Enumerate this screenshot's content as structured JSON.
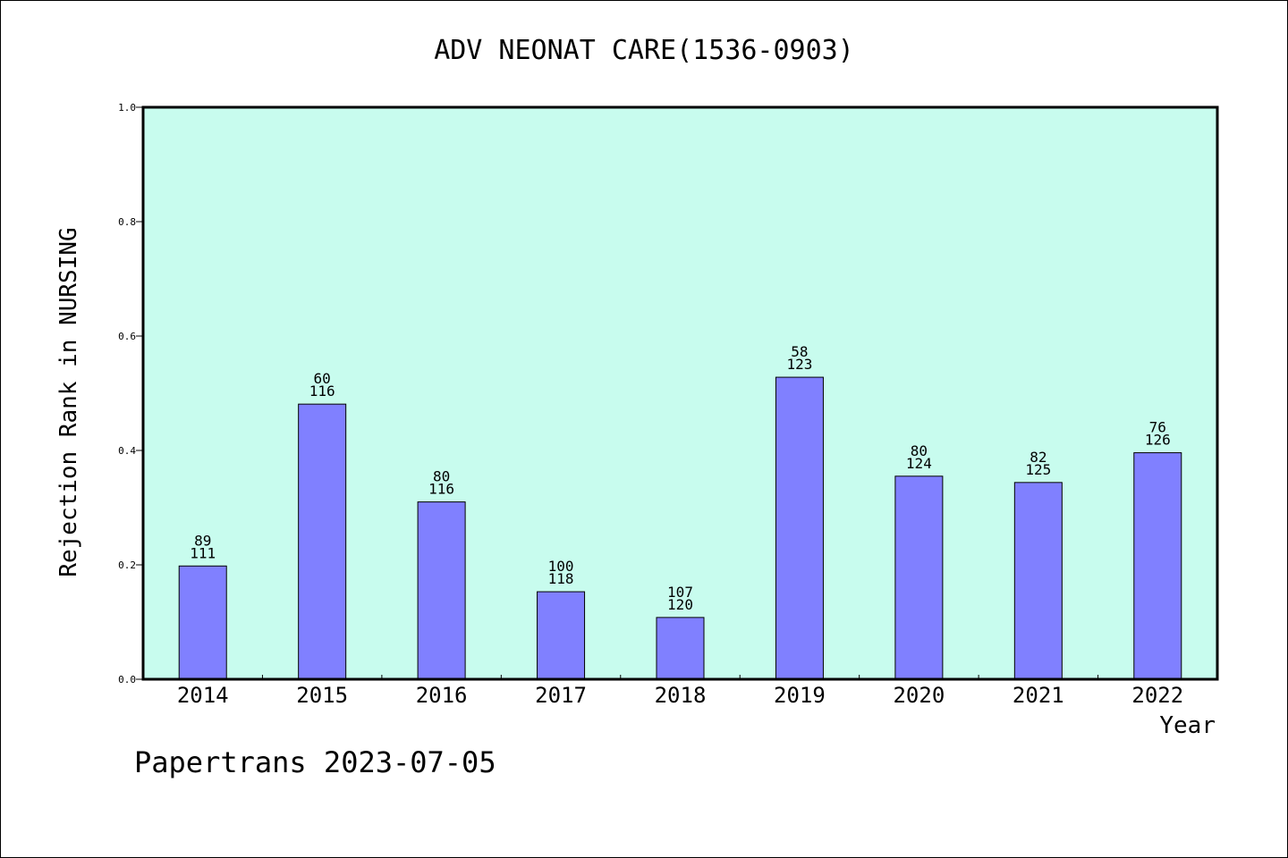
{
  "chart_data": {
    "type": "bar",
    "title": "ADV NEONAT CARE(1536-0903)",
    "xlabel": "Year",
    "ylabel": "Rejection Rank in NURSING",
    "ylim": [
      0,
      1.0
    ],
    "yticks": [
      "0.0",
      "0.2",
      "0.4",
      "0.6",
      "0.8",
      "1.0"
    ],
    "categories": [
      "2014",
      "2015",
      "2016",
      "2017",
      "2018",
      "2019",
      "2020",
      "2021",
      "2022"
    ],
    "values": [
      0.198,
      0.481,
      0.31,
      0.153,
      0.108,
      0.528,
      0.355,
      0.344,
      0.396
    ],
    "rank_labels": [
      "89",
      "60",
      "80",
      "100",
      "107",
      "58",
      "80",
      "82",
      "76"
    ],
    "total_labels": [
      "111",
      "116",
      "116",
      "118",
      "120",
      "123",
      "124",
      "125",
      "126"
    ],
    "grid": false,
    "colors": {
      "plot_background": "#c8fcee",
      "bar_fill": "#8080ff",
      "bar_stroke": "#000000"
    }
  },
  "footer": {
    "credit": "Papertrans 2023-07-05"
  }
}
